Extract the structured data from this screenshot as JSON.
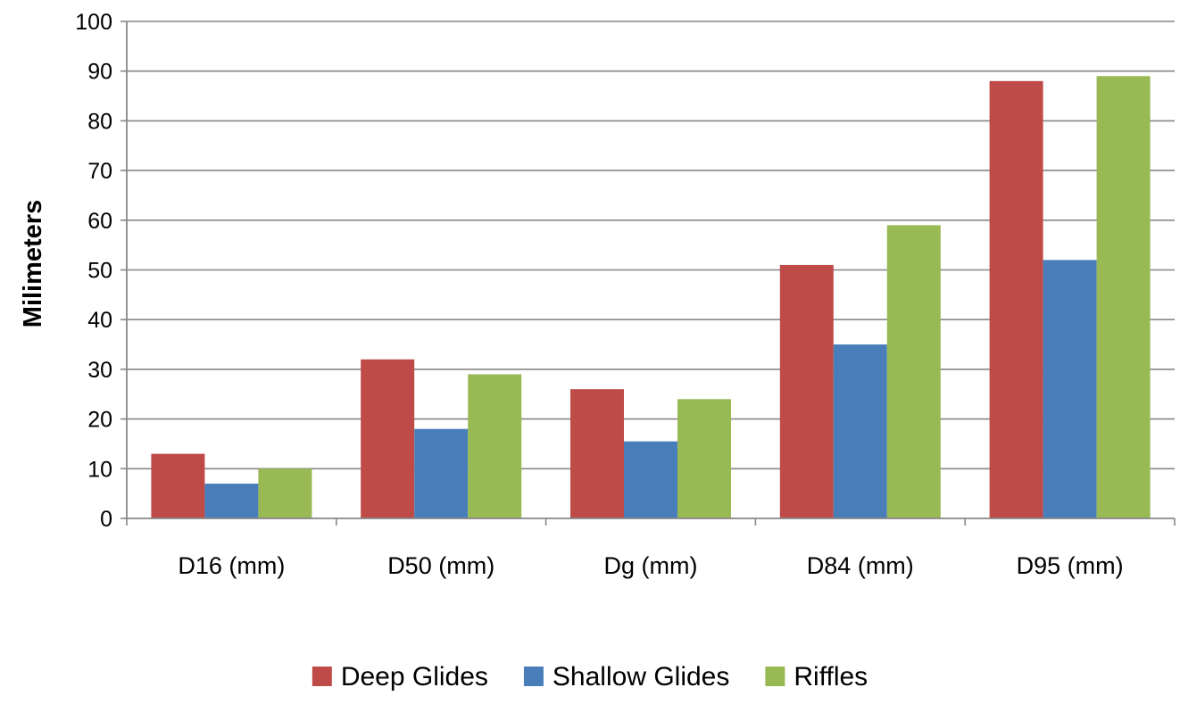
{
  "chart_data": {
    "type": "bar",
    "title": "",
    "xlabel": "",
    "ylabel": "Milimeters",
    "ylim": [
      0,
      100
    ],
    "yticks": [
      "0",
      "10",
      "20",
      "30",
      "40",
      "50",
      "60",
      "70",
      "80",
      "90",
      "100"
    ],
    "ytick_step": 10,
    "grid": true,
    "legend_position": "bottom",
    "categories": [
      "D16 (mm)",
      "D50 (mm)",
      "Dg (mm)",
      "D84 (mm)",
      "D95 (mm)"
    ],
    "series": [
      {
        "name": "Deep Glides",
        "color": "#BE4B48",
        "values": [
          13,
          32,
          26,
          51,
          88
        ]
      },
      {
        "name": "Shallow Glides",
        "color": "#4A7EBB",
        "values": [
          7,
          18,
          15.5,
          35,
          52
        ]
      },
      {
        "name": "Riffles",
        "color": "#98B954",
        "values": [
          10,
          29,
          24,
          59,
          89
        ]
      }
    ]
  }
}
